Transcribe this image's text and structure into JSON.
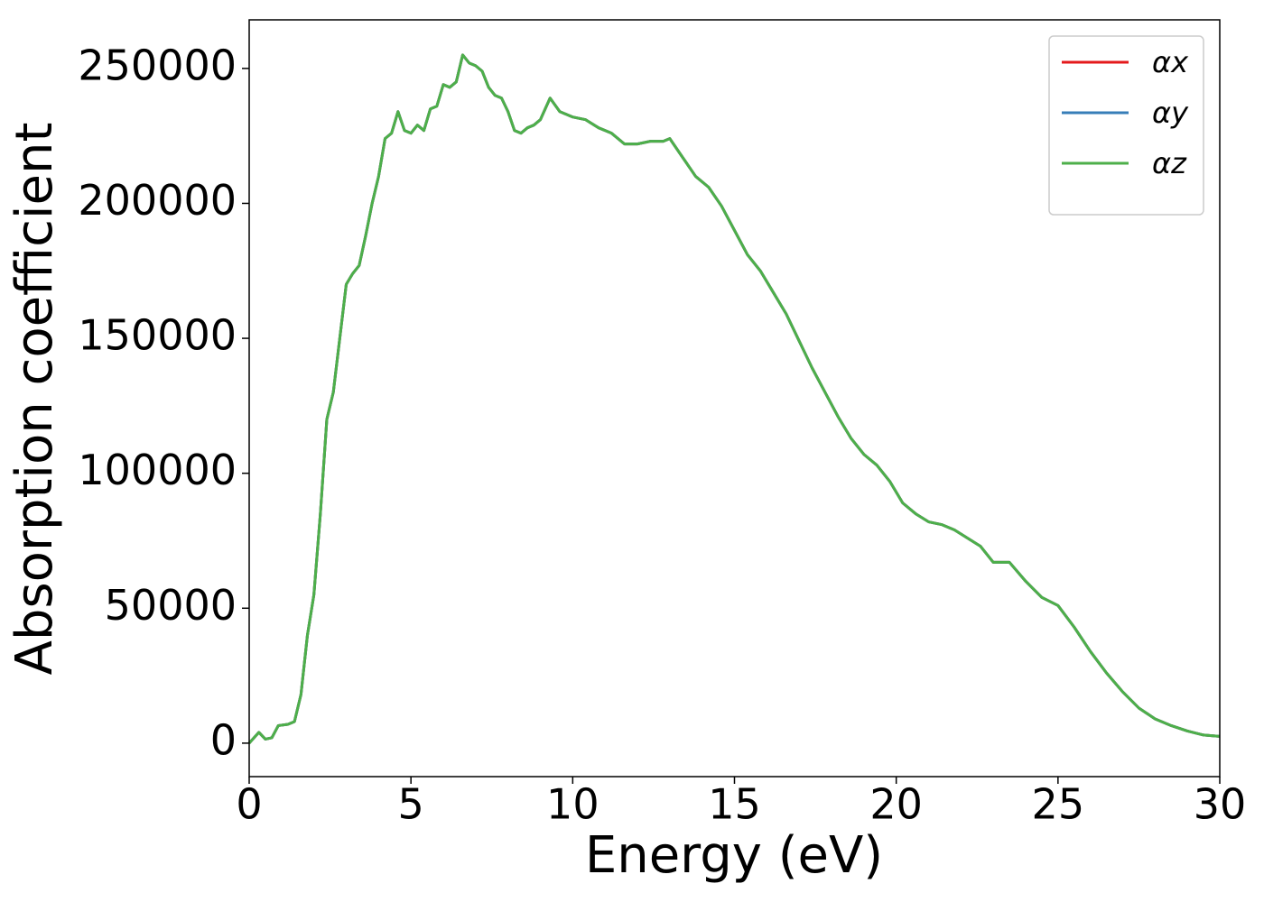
{
  "chart_data": {
    "type": "line",
    "xlabel": "Energy (eV)",
    "ylabel": "Absorption coefficient",
    "x": [
      0,
      0.3,
      0.5,
      0.7,
      0.9,
      1.2,
      1.4,
      1.6,
      1.8,
      2.0,
      2.2,
      2.4,
      2.6,
      2.8,
      3.0,
      3.2,
      3.4,
      3.6,
      3.8,
      4.0,
      4.2,
      4.4,
      4.6,
      4.8,
      5.0,
      5.2,
      5.4,
      5.6,
      5.8,
      6.0,
      6.2,
      6.4,
      6.6,
      6.8,
      7.0,
      7.2,
      7.4,
      7.6,
      7.8,
      8.0,
      8.2,
      8.4,
      8.6,
      8.8,
      9.0,
      9.3,
      9.6,
      10.0,
      10.4,
      10.8,
      11.2,
      11.6,
      12.0,
      12.4,
      12.8,
      13.0,
      13.4,
      13.8,
      14.2,
      14.6,
      15.0,
      15.4,
      15.8,
      16.2,
      16.6,
      17.0,
      17.4,
      17.8,
      18.2,
      18.6,
      19.0,
      19.4,
      19.8,
      20.2,
      20.6,
      21.0,
      21.4,
      21.8,
      22.2,
      22.6,
      23.0,
      23.5,
      24.0,
      24.5,
      25.0,
      25.5,
      26.0,
      26.5,
      27.0,
      27.5,
      28.0,
      28.5,
      29.0,
      29.5,
      30.0
    ],
    "series": [
      {
        "name": "αx",
        "color": "#e41a1c",
        "values": [
          0,
          4000,
          1500,
          2000,
          6500,
          7000,
          8000,
          18000,
          40000,
          55000,
          85000,
          120000,
          130000,
          150000,
          170000,
          174000,
          177000,
          188000,
          200000,
          210000,
          224000,
          226000,
          234000,
          227000,
          226000,
          229000,
          227000,
          235000,
          236000,
          244000,
          243000,
          245000,
          255000,
          252000,
          251000,
          249000,
          243000,
          240000,
          239000,
          234000,
          227000,
          226000,
          228000,
          229000,
          231000,
          239000,
          234000,
          232000,
          231000,
          228000,
          226000,
          222000,
          222000,
          223000,
          223000,
          224000,
          217000,
          210000,
          206000,
          199000,
          190000,
          181000,
          175000,
          167000,
          159000,
          149000,
          139000,
          130000,
          121000,
          113000,
          107000,
          103000,
          97000,
          89000,
          85000,
          82000,
          81000,
          79000,
          76000,
          73000,
          67000,
          67000,
          60000,
          54000,
          51000,
          43000,
          34000,
          26000,
          19000,
          13000,
          9000,
          6500,
          4500,
          3000,
          2500
        ]
      },
      {
        "name": "αy",
        "color": "#377eb8",
        "values": [
          0,
          4000,
          1500,
          2000,
          6500,
          7000,
          8000,
          18000,
          40000,
          55000,
          85000,
          120000,
          130000,
          150000,
          170000,
          174000,
          177000,
          188000,
          200000,
          210000,
          224000,
          226000,
          234000,
          227000,
          226000,
          229000,
          227000,
          235000,
          236000,
          244000,
          243000,
          245000,
          255000,
          252000,
          251000,
          249000,
          243000,
          240000,
          239000,
          234000,
          227000,
          226000,
          228000,
          229000,
          231000,
          239000,
          234000,
          232000,
          231000,
          228000,
          226000,
          222000,
          222000,
          223000,
          223000,
          224000,
          217000,
          210000,
          206000,
          199000,
          190000,
          181000,
          175000,
          167000,
          159000,
          149000,
          139000,
          130000,
          121000,
          113000,
          107000,
          103000,
          97000,
          89000,
          85000,
          82000,
          81000,
          79000,
          76000,
          73000,
          67000,
          67000,
          60000,
          54000,
          51000,
          43000,
          34000,
          26000,
          19000,
          13000,
          9000,
          6500,
          4500,
          3000,
          2500
        ]
      },
      {
        "name": "αz",
        "color": "#4daf4a",
        "values": [
          0,
          4000,
          1500,
          2000,
          6500,
          7000,
          8000,
          18000,
          40000,
          55000,
          85000,
          120000,
          130000,
          150000,
          170000,
          174000,
          177000,
          188000,
          200000,
          210000,
          224000,
          226000,
          234000,
          227000,
          226000,
          229000,
          227000,
          235000,
          236000,
          244000,
          243000,
          245000,
          255000,
          252000,
          251000,
          249000,
          243000,
          240000,
          239000,
          234000,
          227000,
          226000,
          228000,
          229000,
          231000,
          239000,
          234000,
          232000,
          231000,
          228000,
          226000,
          222000,
          222000,
          223000,
          223000,
          224000,
          217000,
          210000,
          206000,
          199000,
          190000,
          181000,
          175000,
          167000,
          159000,
          149000,
          139000,
          130000,
          121000,
          113000,
          107000,
          103000,
          97000,
          89000,
          85000,
          82000,
          81000,
          79000,
          76000,
          73000,
          67000,
          67000,
          60000,
          54000,
          51000,
          43000,
          34000,
          26000,
          19000,
          13000,
          9000,
          6500,
          4500,
          3000,
          2500
        ]
      }
    ],
    "xlim": [
      0,
      30
    ],
    "xticks": [
      0,
      5,
      10,
      15,
      20,
      25,
      30
    ],
    "ylim": [
      -12400,
      268000
    ],
    "yticks": [
      0,
      50000,
      100000,
      150000,
      200000,
      250000
    ],
    "grid": false,
    "legend": "upper right"
  }
}
